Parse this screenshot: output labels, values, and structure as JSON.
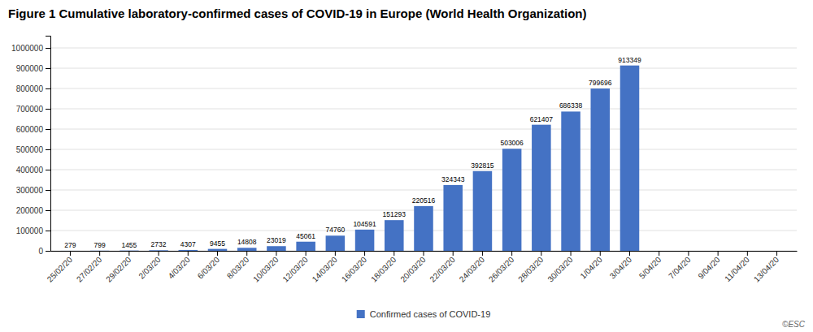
{
  "chart_data": {
    "type": "bar",
    "title": "Figure 1 Cumulative laboratory-confirmed cases of COVID-19 in Europe (World Health Organization)",
    "categories": [
      "25/02/20",
      "27/02/20",
      "29/02/20",
      "2/03/20",
      "4/03/20",
      "6/03/20",
      "8/03/20",
      "10/03/20",
      "12/03/20",
      "14/03/20",
      "16/03/20",
      "18/03/20",
      "20/03/20",
      "22/03/20",
      "24/03/20",
      "26/03/20",
      "28/03/20",
      "30/03/20",
      "1/04/20",
      "3/04/20",
      "5/04/20",
      "7/04/20",
      "9/04/20",
      "11/04/20",
      "13/04/20"
    ],
    "series": [
      {
        "name": "Confirmed cases of COVID-19",
        "color": "#4472C4",
        "values": [
          279,
          799,
          1455,
          2732,
          4307,
          9455,
          14808,
          23019,
          45061,
          74760,
          104591,
          151293,
          220516,
          324343,
          392815,
          503006,
          621407,
          686338,
          799696,
          913349,
          0,
          0,
          0,
          0,
          0
        ],
        "value_labels": [
          "279",
          "799",
          "1455",
          "2732",
          "4307",
          "9455",
          "14808",
          "23019",
          "45061",
          "74760",
          "104591",
          "151293",
          "220516",
          "324343",
          "392815",
          "503006",
          "621407",
          "686338",
          "799696",
          "913349",
          null,
          null,
          null,
          null,
          null
        ]
      }
    ],
    "ylim": [
      0,
      1060000
    ],
    "yticks": [
      0,
      100000,
      200000,
      300000,
      400000,
      500000,
      600000,
      700000,
      800000,
      900000,
      1000000
    ],
    "grid": true,
    "legend": "bottom",
    "data_labels": true,
    "annotations": [
      {
        "text": "©ESC"
      }
    ]
  }
}
